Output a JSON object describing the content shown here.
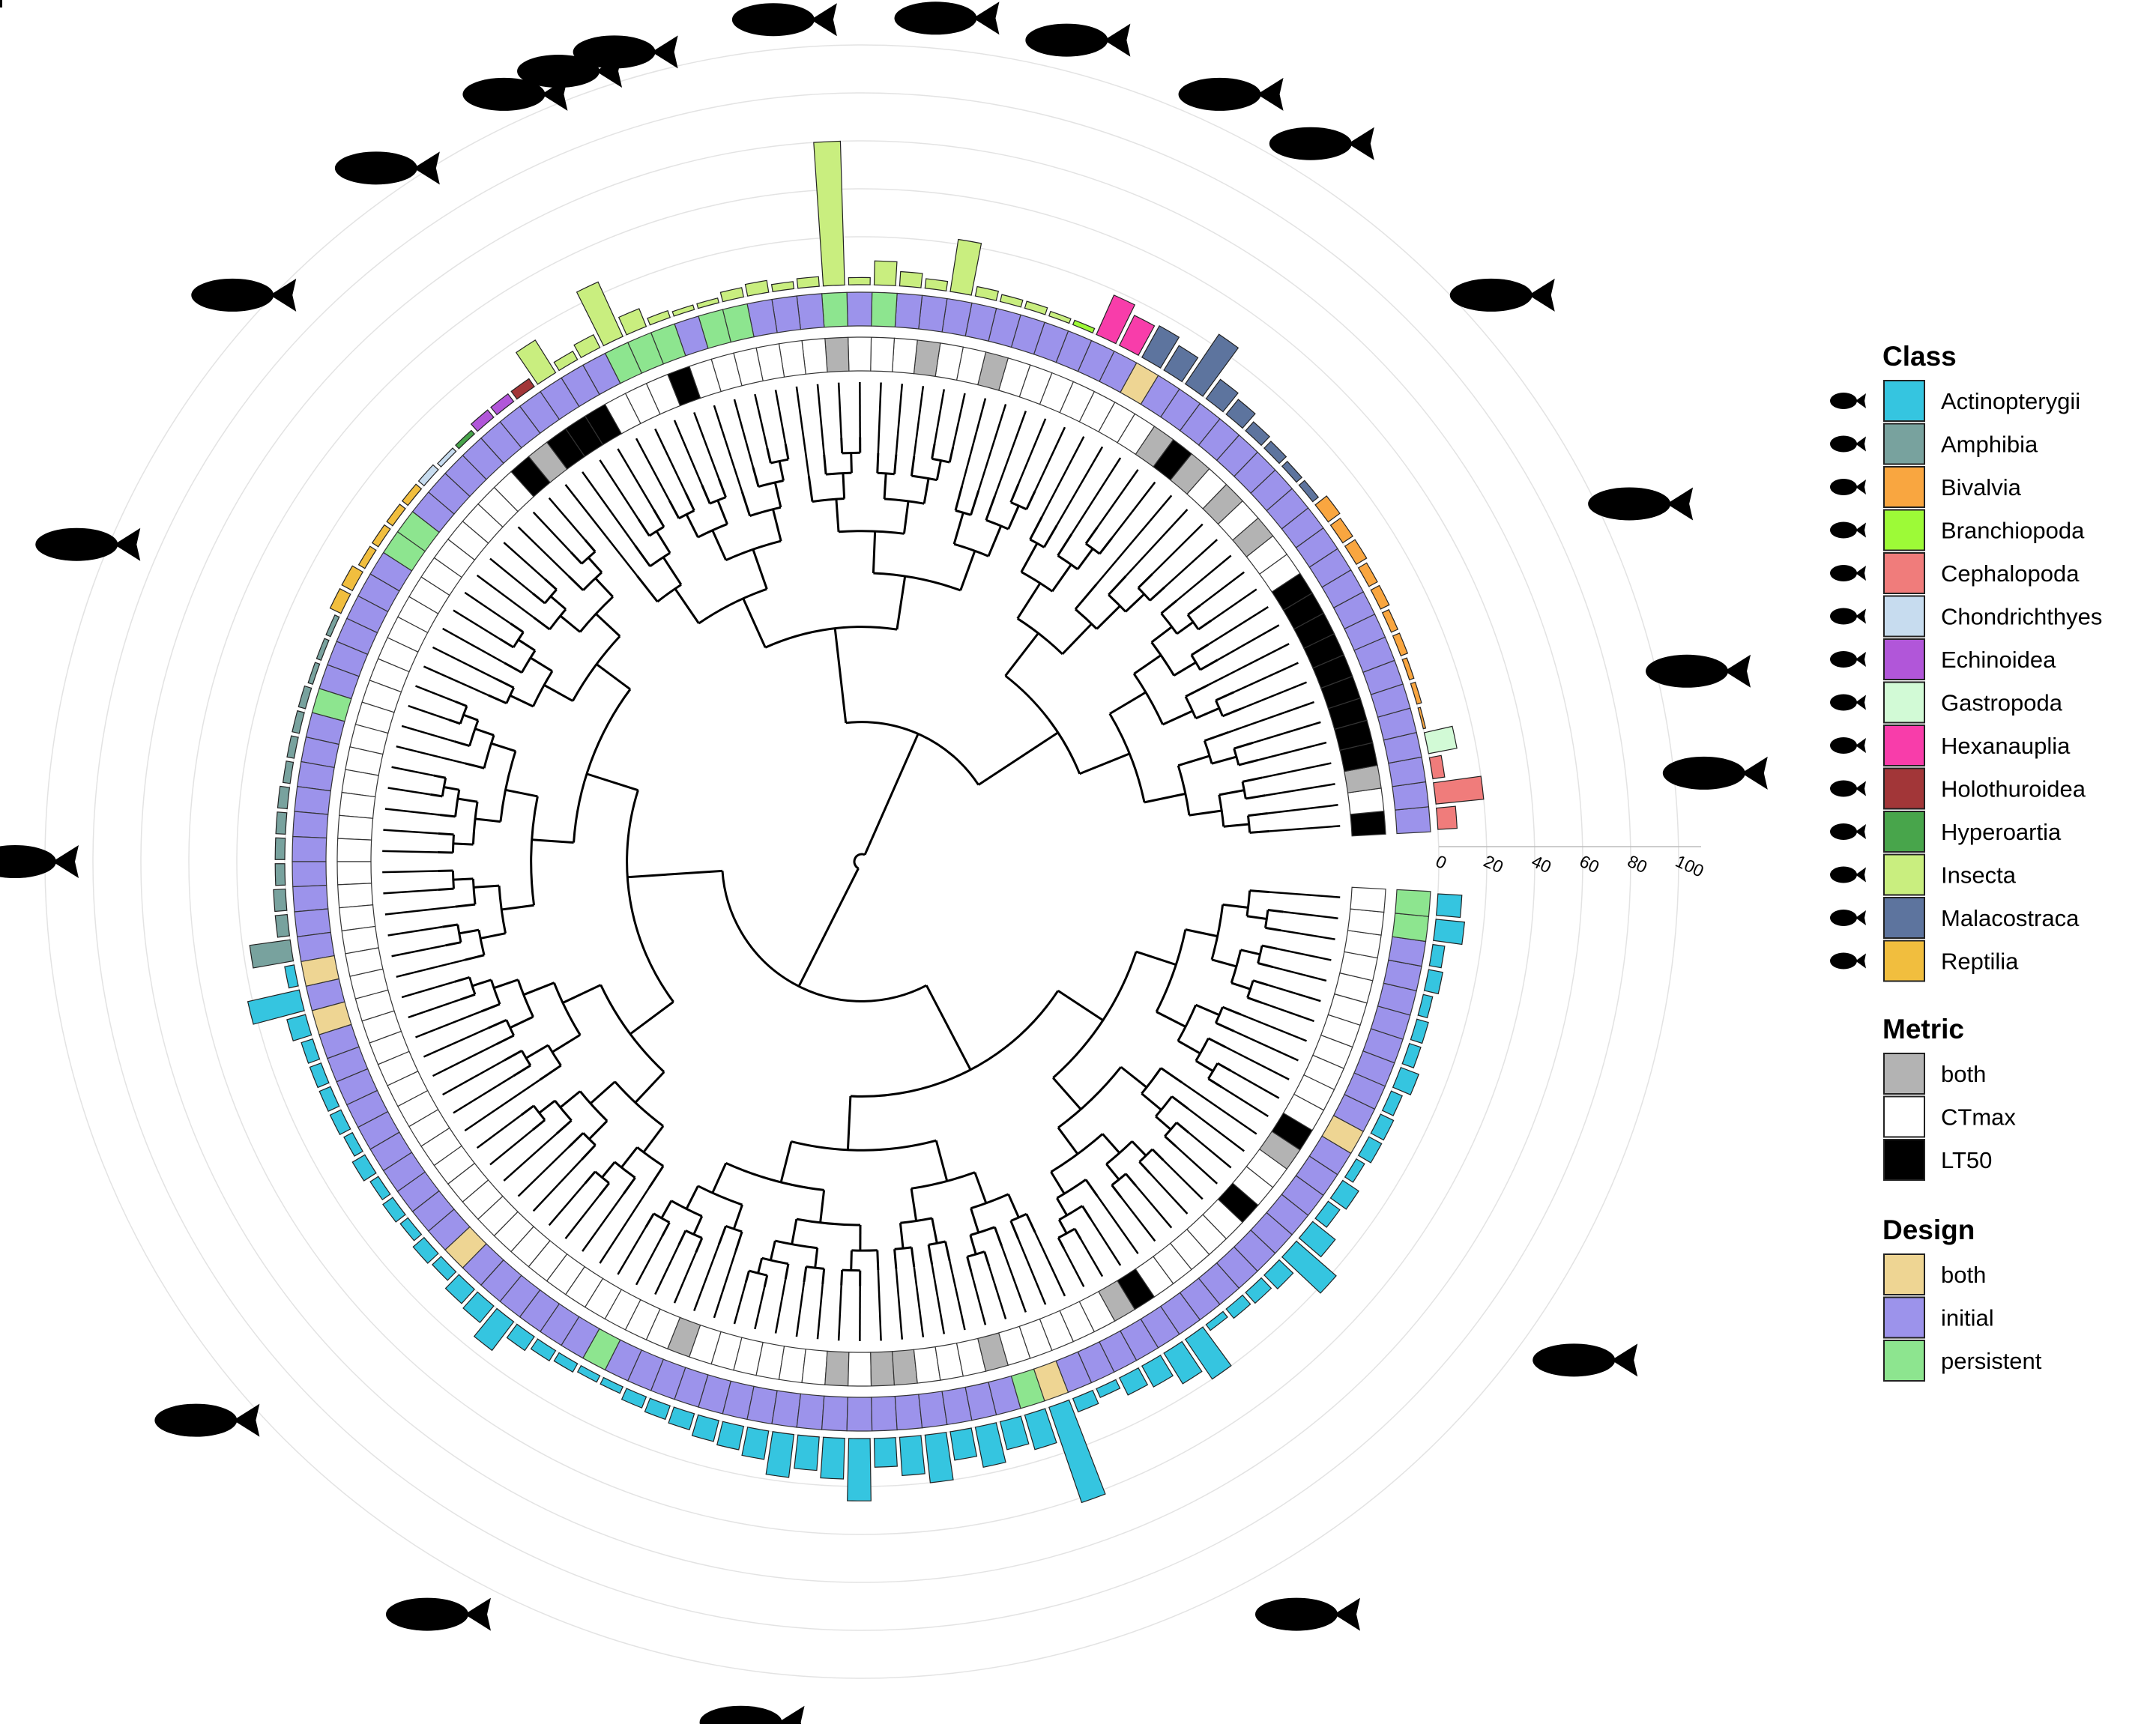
{
  "legend": {
    "class": {
      "title": "Class",
      "items": [
        {
          "label": "Actinopterygii",
          "color": "#35C5E0",
          "icon": "fish-icon"
        },
        {
          "label": "Amphibia",
          "color": "#78A29E",
          "icon": "frog-icon"
        },
        {
          "label": "Bivalvia",
          "color": "#F9A640",
          "icon": "clam-icon"
        },
        {
          "label": "Branchiopoda",
          "color": "#9DFA37",
          "icon": "daphnia-icon"
        },
        {
          "label": "Cephalopoda",
          "color": "#F07C7B",
          "icon": "octopus-icon"
        },
        {
          "label": "Chondrichthyes",
          "color": "#C7DCEF",
          "icon": "shark-icon"
        },
        {
          "label": "Echinoidea",
          "color": "#B156D9",
          "icon": "sea-urchin-icon"
        },
        {
          "label": "Gastropoda",
          "color": "#D2FAD6",
          "icon": "snail-icon"
        },
        {
          "label": "Hexanauplia",
          "color": "#F83DAA",
          "icon": "copepod-icon"
        },
        {
          "label": "Holothuroidea",
          "color": "#A23638",
          "icon": "sea-cucumber-icon"
        },
        {
          "label": "Hyperoartia",
          "color": "#48A54B",
          "icon": "lamprey-icon"
        },
        {
          "label": "Insecta",
          "color": "#C9EE7F",
          "icon": "fly-icon"
        },
        {
          "label": "Malacostraca",
          "color": "#5D749E",
          "icon": "shrimp-icon"
        },
        {
          "label": "Reptilia",
          "color": "#F1BE3E",
          "icon": "iguana-icon"
        }
      ]
    },
    "metric": {
      "title": "Metric",
      "items": [
        {
          "label": "both",
          "color": "#B3B3B3"
        },
        {
          "label": "CTmax",
          "color": "#FFFFFF"
        },
        {
          "label": "LT50",
          "color": "#000000"
        }
      ]
    },
    "design": {
      "title": "Design",
      "items": [
        {
          "label": "both",
          "color": "#EED593"
        },
        {
          "label": "initial",
          "color": "#9C93EB"
        },
        {
          "label": "persistent",
          "color": "#8DE58F"
        }
      ]
    }
  },
  "chart_data": {
    "type": "circular-phylogeny-bar",
    "radial_axis": {
      "ticks": [
        "0",
        "20",
        "40",
        "60",
        "80",
        "100"
      ],
      "range": [
        0,
        100
      ]
    },
    "tip_count": 140,
    "classes_by_tip": [
      "Cephalopoda",
      "Cephalopoda",
      "Cephalopoda",
      "Gastropoda",
      "Bivalvia",
      "Bivalvia",
      "Bivalvia",
      "Bivalvia",
      "Bivalvia",
      "Bivalvia",
      "Bivalvia",
      "Bivalvia",
      "Bivalvia",
      "Bivalvia",
      "Malacostraca",
      "Malacostraca",
      "Malacostraca",
      "Malacostraca",
      "Malacostraca",
      "Malacostraca",
      "Malacostraca",
      "Malacostraca",
      "Malacostraca",
      "Hexanauplia",
      "Hexanauplia",
      "Branchiopoda",
      "Insecta",
      "Insecta",
      "Insecta",
      "Insecta",
      "Insecta",
      "Insecta",
      "Insecta",
      "Insecta",
      "Insecta",
      "Insecta",
      "Insecta",
      "Insecta",
      "Insecta",
      "Insecta",
      "Insecta",
      "Insecta",
      "Insecta",
      "Insecta",
      "Insecta",
      "Insecta",
      "Insecta",
      "Insecta",
      "Holothuroidea",
      "Echinoidea",
      "Echinoidea",
      "Hyperoartia",
      "Chondrichthyes",
      "Chondrichthyes",
      "Reptilia",
      "Reptilia",
      "Reptilia",
      "Reptilia",
      "Reptilia",
      "Reptilia",
      "Amphibia",
      "Amphibia",
      "Amphibia",
      "Amphibia",
      "Amphibia",
      "Amphibia",
      "Amphibia",
      "Amphibia",
      "Amphibia",
      "Amphibia",
      "Amphibia",
      "Amphibia",
      "Amphibia",
      "Amphibia",
      "Actinopterygii",
      "Actinopterygii",
      "Actinopterygii",
      "Actinopterygii",
      "Actinopterygii",
      "Actinopterygii",
      "Actinopterygii",
      "Actinopterygii",
      "Actinopterygii",
      "Actinopterygii",
      "Actinopterygii",
      "Actinopterygii",
      "Actinopterygii",
      "Actinopterygii",
      "Actinopterygii",
      "Actinopterygii",
      "Actinopterygii",
      "Actinopterygii",
      "Actinopterygii",
      "Actinopterygii",
      "Actinopterygii",
      "Actinopterygii",
      "Actinopterygii",
      "Actinopterygii",
      "Actinopterygii",
      "Actinopterygii",
      "Actinopterygii",
      "Actinopterygii",
      "Actinopterygii",
      "Actinopterygii",
      "Actinopterygii",
      "Actinopterygii",
      "Actinopterygii",
      "Actinopterygii",
      "Actinopterygii",
      "Actinopterygii",
      "Actinopterygii",
      "Actinopterygii",
      "Actinopterygii",
      "Actinopterygii",
      "Actinopterygii",
      "Actinopterygii",
      "Actinopterygii",
      "Actinopterygii",
      "Actinopterygii",
      "Actinopterygii",
      "Actinopterygii",
      "Actinopterygii",
      "Actinopterygii",
      "Actinopterygii",
      "Actinopterygii",
      "Actinopterygii",
      "Actinopterygii",
      "Actinopterygii",
      "Actinopterygii",
      "Actinopterygii",
      "Actinopterygii",
      "Actinopterygii",
      "Actinopterygii",
      "Actinopterygii",
      "Actinopterygii",
      "Actinopterygii",
      "Actinopterygii",
      "Actinopterygii",
      "Actinopterygii",
      "Actinopterygii"
    ],
    "bar_values": [
      8,
      20,
      5,
      12,
      1,
      2,
      2,
      3,
      3,
      4,
      4,
      5,
      5,
      6,
      3,
      3,
      4,
      5,
      8,
      10,
      25,
      12,
      15,
      14,
      18,
      2,
      2,
      3,
      3,
      4,
      22,
      4,
      6,
      10,
      3,
      60,
      4,
      3,
      5,
      4,
      2,
      2,
      3,
      8,
      25,
      6,
      4,
      16,
      4,
      4,
      4,
      2,
      2,
      3,
      3,
      3,
      3,
      3,
      5,
      5,
      2,
      2,
      2,
      3,
      3,
      3,
      3,
      4,
      4,
      4,
      4,
      5,
      5,
      17,
      4,
      22,
      8,
      5,
      5,
      5,
      5,
      4,
      6,
      4,
      5,
      4,
      6,
      5,
      8,
      9,
      15,
      7,
      5,
      4,
      3,
      3,
      5,
      6,
      7,
      9,
      10,
      12,
      18,
      14,
      17,
      26,
      12,
      16,
      20,
      12,
      17,
      12,
      15,
      42,
      6,
      4,
      8,
      10,
      15,
      20,
      3,
      5,
      6,
      8,
      22,
      12,
      6,
      8,
      4,
      6,
      6,
      5,
      8,
      5,
      5,
      4,
      6,
      5,
      12,
      10
    ],
    "metric_by_tip": [
      "LT50",
      "CTmax",
      "both",
      "LT50",
      "LT50",
      "LT50",
      "LT50",
      "LT50",
      "LT50",
      "LT50",
      "LT50",
      "LT50",
      "CTmax",
      "CTmax",
      "both",
      "CTmax",
      "both",
      "CTmax",
      "both",
      "LT50",
      "both",
      "CTmax",
      "CTmax",
      "CTmax",
      "CTmax",
      "CTmax",
      "CTmax",
      "CTmax",
      "both",
      "CTmax",
      "CTmax",
      "both",
      "CTmax",
      "CTmax",
      "CTmax",
      "both",
      "CTmax",
      "CTmax",
      "CTmax",
      "CTmax",
      "CTmax",
      "CTmax",
      "LT50",
      "CTmax",
      "CTmax",
      "CTmax",
      "LT50",
      "LT50",
      "LT50",
      "both",
      "LT50",
      "CTmax",
      "CTmax",
      "CTmax",
      "CTmax",
      "CTmax",
      "CTmax",
      "CTmax",
      "CTmax",
      "CTmax",
      "CTmax",
      "CTmax",
      "CTmax",
      "CTmax",
      "CTmax",
      "CTmax",
      "CTmax",
      "CTmax",
      "CTmax",
      "CTmax",
      "CTmax",
      "CTmax",
      "CTmax",
      "CTmax",
      "CTmax",
      "CTmax",
      "CTmax",
      "CTmax",
      "CTmax",
      "CTmax",
      "CTmax",
      "CTmax",
      "CTmax",
      "CTmax",
      "CTmax",
      "CTmax",
      "CTmax",
      "CTmax",
      "CTmax",
      "CTmax",
      "CTmax",
      "CTmax",
      "CTmax",
      "CTmax",
      "CTmax",
      "CTmax",
      "CTmax",
      "both",
      "CTmax",
      "CTmax",
      "CTmax",
      "CTmax",
      "CTmax",
      "CTmax",
      "both",
      "CTmax",
      "both",
      "both",
      "CTmax",
      "CTmax",
      "CTmax",
      "both",
      "CTmax",
      "CTmax",
      "CTmax",
      "CTmax",
      "CTmax",
      "both",
      "LT50",
      "CTmax",
      "CTmax",
      "CTmax",
      "CTmax",
      "CTmax",
      "LT50",
      "CTmax",
      "CTmax",
      "both",
      "LT50",
      "CTmax",
      "CTmax",
      "CTmax",
      "CTmax",
      "CTmax",
      "CTmax",
      "CTmax",
      "CTmax",
      "CTmax",
      "CTmax",
      "CTmax"
    ],
    "design_by_tip": [
      "initial",
      "initial",
      "initial",
      "initial",
      "initial",
      "initial",
      "initial",
      "initial",
      "initial",
      "initial",
      "initial",
      "initial",
      "initial",
      "initial",
      "initial",
      "initial",
      "initial",
      "initial",
      "initial",
      "initial",
      "initial",
      "initial",
      "both",
      "initial",
      "initial",
      "initial",
      "initial",
      "initial",
      "initial",
      "initial",
      "initial",
      "initial",
      "initial",
      "persistent",
      "initial",
      "persistent",
      "initial",
      "initial",
      "initial",
      "persistent",
      "persistent",
      "initial",
      "persistent",
      "persistent",
      "persistent",
      "initial",
      "initial",
      "initial",
      "initial",
      "initial",
      "initial",
      "initial",
      "initial",
      "initial",
      "initial",
      "persistent",
      "persistent",
      "initial",
      "initial",
      "initial",
      "initial",
      "initial",
      "initial",
      "persistent",
      "initial",
      "initial",
      "initial",
      "initial",
      "initial",
      "initial",
      "initial",
      "initial",
      "initial",
      "initial",
      "both",
      "initial",
      "both",
      "initial",
      "initial",
      "initial",
      "initial",
      "initial",
      "initial",
      "initial",
      "initial",
      "initial",
      "initial",
      "both",
      "initial",
      "initial",
      "initial",
      "initial",
      "initial",
      "initial",
      "persistent",
      "initial",
      "initial",
      "initial",
      "initial",
      "initial",
      "initial",
      "initial",
      "initial",
      "initial",
      "initial",
      "initial",
      "initial",
      "initial",
      "initial",
      "initial",
      "initial",
      "initial",
      "persistent",
      "both",
      "initial",
      "initial",
      "initial",
      "initial",
      "initial",
      "initial",
      "initial",
      "initial",
      "initial",
      "initial",
      "initial",
      "initial",
      "initial",
      "initial",
      "initial",
      "both",
      "initial",
      "initial",
      "initial",
      "initial",
      "initial",
      "initial",
      "initial",
      "initial",
      "persistent",
      "persistent",
      "persistent",
      "initial"
    ]
  }
}
